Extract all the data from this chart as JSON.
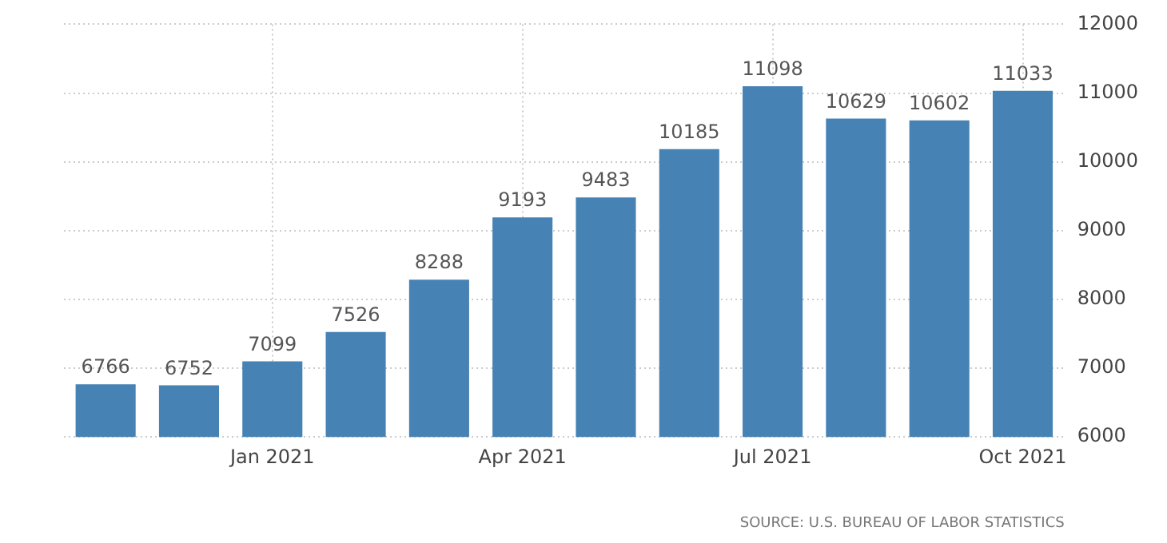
{
  "chart_data": {
    "type": "bar",
    "categories": [
      null,
      null,
      "Jan 2021",
      null,
      null,
      "Apr 2021",
      null,
      null,
      "Jul 2021",
      null,
      null,
      "Oct 2021"
    ],
    "values": [
      6766,
      6752,
      7099,
      7526,
      8288,
      9193,
      9483,
      10185,
      11098,
      10629,
      10602,
      11033
    ],
    "color": "#4682b4",
    "ylim": [
      6000,
      12000
    ],
    "yticks": [
      6000,
      7000,
      8000,
      9000,
      10000,
      11000,
      12000
    ],
    "grid": true,
    "data_labels": true,
    "annotations": [
      "SOURCE: U.S. BUREAU OF LABOR STATISTICS"
    ]
  }
}
